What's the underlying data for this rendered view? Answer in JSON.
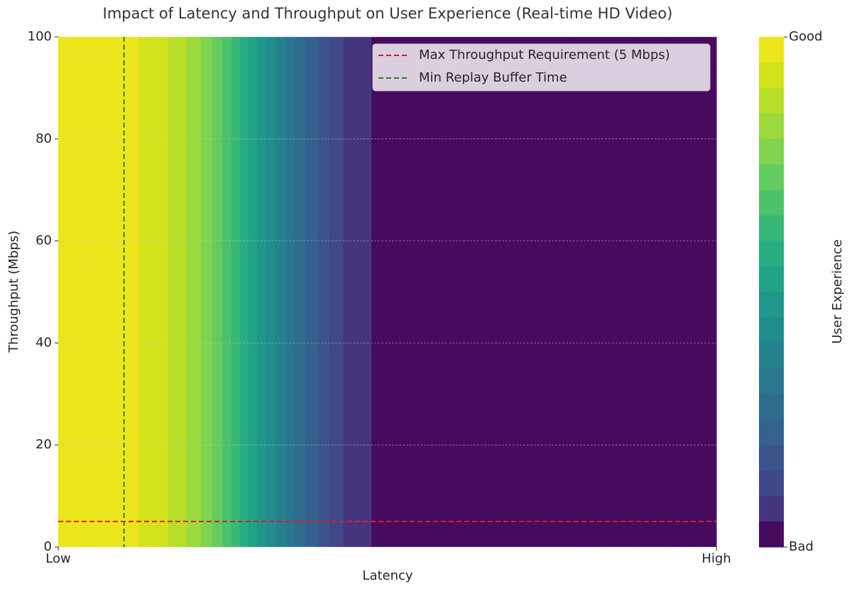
{
  "chart_data": {
    "type": "contour",
    "title": "Impact of Latency and Throughput on User Experience (Real-time HD Video)",
    "x_label": "Latency",
    "y_label": "Throughput (Mbps)",
    "xlim": [
      0,
      1
    ],
    "xticks": [
      {
        "value": 0,
        "label": "Low"
      },
      {
        "value": 1,
        "label": "High"
      }
    ],
    "ylim": [
      0,
      100
    ],
    "yticks": [
      0,
      20,
      40,
      60,
      80,
      100
    ],
    "grid": true,
    "x_edges": [
      0,
      0.122,
      0.167,
      0.195,
      0.217,
      0.234,
      0.249,
      0.263,
      0.276,
      0.289,
      0.302,
      0.316,
      0.33,
      0.345,
      0.36,
      0.376,
      0.394,
      0.412,
      0.433,
      0.476,
      1
    ],
    "colors": [
      "#ede51b",
      "#d2e21b",
      "#b8de29",
      "#9bd93c",
      "#7fd34e",
      "#63cb5f",
      "#4cc26c",
      "#37b878",
      "#27ad81",
      "#20a386",
      "#1f978b",
      "#218c8d",
      "#25818e",
      "#2a768e",
      "#2f6c8e",
      "#34618d",
      "#3a548c",
      "#3f4889",
      "#45357f",
      "#460b5e"
    ],
    "lines": [
      {
        "name": "Max Throughput Requirement (5 Mbps)",
        "color": "#e31a1c",
        "orientation": "horizontal",
        "value": 5
      },
      {
        "name": "Min Replay Buffer Time",
        "color": "#1a8a1a",
        "orientation": "vertical",
        "value": 0.1
      }
    ],
    "legend": "upper right",
    "colorbar": {
      "label": "User Experience",
      "lim": [
        0,
        1
      ],
      "ticks": [
        {
          "value": 1,
          "label": "Good"
        },
        {
          "value": 0,
          "label": "Bad"
        }
      ]
    }
  }
}
